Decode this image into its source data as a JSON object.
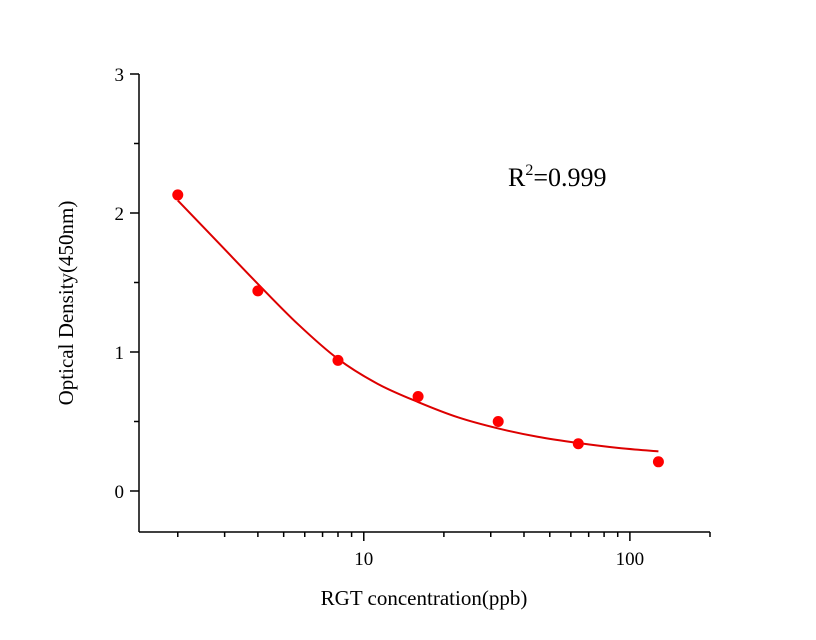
{
  "chart_data": {
    "type": "scatter",
    "title": "",
    "xlabel": "RGT concentration(ppb)",
    "ylabel": "Optical Density(450nm)",
    "x_scale": "log",
    "xlim": [
      1.43,
      200
    ],
    "ylim": [
      -0.295,
      3
    ],
    "x_major_ticks": [
      10,
      100
    ],
    "x_tick_labels": [
      "10",
      "100"
    ],
    "x_minor_ticks": [
      2,
      3,
      4,
      5,
      6,
      7,
      8,
      9,
      20,
      30,
      40,
      50,
      60,
      70,
      80,
      90,
      200
    ],
    "y_major_ticks": [
      0,
      1,
      2,
      3
    ],
    "y_tick_labels": [
      "0",
      "1",
      "2",
      "3"
    ],
    "y_minor_ticks": [
      0.5,
      1.5,
      2.5
    ],
    "grid": false,
    "series": [
      {
        "kind": "points",
        "color": "#ff0000",
        "x": [
          2,
          4,
          8,
          16,
          32,
          64,
          128
        ],
        "y": [
          2.13,
          1.44,
          0.94,
          0.68,
          0.5,
          0.34,
          0.21
        ]
      },
      {
        "kind": "fit-line",
        "color": "#dd0000",
        "x": [
          2,
          2.83,
          4,
          5.66,
          8,
          11.3,
          16,
          22.6,
          32,
          45,
          64,
          90,
          128
        ],
        "y": [
          2.09,
          1.79,
          1.49,
          1.2,
          0.95,
          0.77,
          0.64,
          0.53,
          0.45,
          0.39,
          0.345,
          0.31,
          0.285
        ]
      }
    ],
    "annotation": {
      "prefix": "R",
      "superscript": "2",
      "suffix": "=0.999"
    }
  }
}
